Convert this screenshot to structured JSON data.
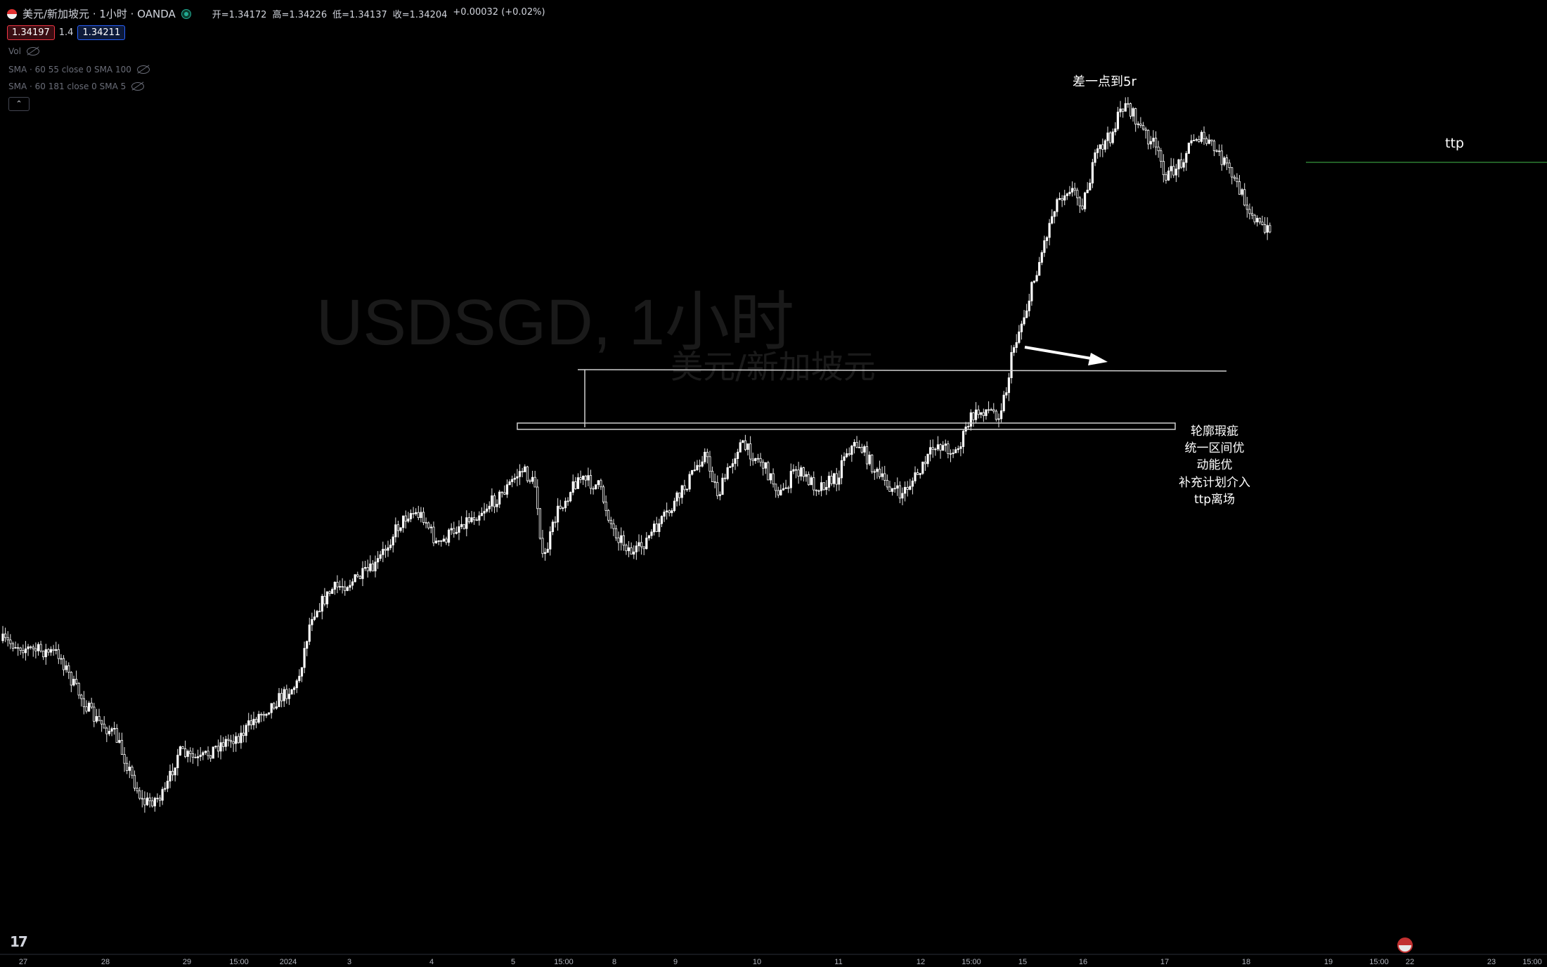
{
  "header": {
    "symbol_title": "美元/新加坡元 · 1小时 · OANDA",
    "ohlc": {
      "open": "开=1.34172",
      "high": "高=1.34226",
      "low": "低=1.34137",
      "close": "收=1.34204",
      "change": "+0.00032 (+0.02%)"
    },
    "bid": "1.34197",
    "spread": "1.4",
    "ask": "1.34211"
  },
  "indicators": [
    {
      "label": "Vol"
    },
    {
      "label": "SMA · 60 55 close 0 SMA 100"
    },
    {
      "label": "SMA · 60 181 close 0 SMA 5"
    }
  ],
  "watermark": {
    "line1": "USDSGD, 1小时",
    "line2": "美元/新加坡元"
  },
  "annotations": {
    "target_note": "差一点到5r",
    "ttp_label": "ttp",
    "reasons": [
      "轮廓瑕疵",
      "统一区间优",
      "动能优",
      "补充计划介入",
      "ttp离场"
    ]
  },
  "colors": {
    "background": "#000000",
    "candle": "#ffffff",
    "ttp_line": "#2e7d32",
    "accent_red": "#f23645",
    "accent_blue": "#2962ff"
  },
  "chart_data": {
    "type": "candlestick",
    "symbol": "USDSGD",
    "interval": "1小时",
    "x_tick_labels": [
      "27",
      "28",
      "29",
      "15:00",
      "2024",
      "3",
      "4",
      "5",
      "15:00",
      "8",
      "9",
      "10",
      "11",
      "12",
      "15:00",
      "15",
      "16",
      "17",
      "18",
      "19",
      "15:00",
      "22",
      "23",
      "15:00"
    ],
    "ylim": [
      0,
      1000
    ],
    "close_path": [
      [
        0,
        690
      ],
      [
        0.02,
        700
      ],
      [
        0.04,
        705
      ],
      [
        0.05,
        740
      ],
      [
        0.065,
        780
      ],
      [
        0.08,
        800
      ],
      [
        0.1,
        880
      ],
      [
        0.115,
        870
      ],
      [
        0.125,
        820
      ],
      [
        0.14,
        830
      ],
      [
        0.155,
        810
      ],
      [
        0.17,
        800
      ],
      [
        0.18,
        780
      ],
      [
        0.195,
        760
      ],
      [
        0.21,
        740
      ],
      [
        0.22,
        660
      ],
      [
        0.235,
        630
      ],
      [
        0.25,
        620
      ],
      [
        0.265,
        605
      ],
      [
        0.28,
        560
      ],
      [
        0.29,
        540
      ],
      [
        0.3,
        545
      ],
      [
        0.31,
        580
      ],
      [
        0.325,
        555
      ],
      [
        0.34,
        540
      ],
      [
        0.355,
        520
      ],
      [
        0.37,
        490
      ],
      [
        0.38,
        510
      ],
      [
        0.385,
        600
      ],
      [
        0.395,
        540
      ],
      [
        0.41,
        500
      ],
      [
        0.425,
        510
      ],
      [
        0.435,
        560
      ],
      [
        0.45,
        590
      ],
      [
        0.46,
        570
      ],
      [
        0.475,
        540
      ],
      [
        0.49,
        500
      ],
      [
        0.5,
        470
      ],
      [
        0.51,
        520
      ],
      [
        0.525,
        460
      ],
      [
        0.54,
        480
      ],
      [
        0.555,
        520
      ],
      [
        0.565,
        490
      ],
      [
        0.58,
        510
      ],
      [
        0.595,
        500
      ],
      [
        0.6,
        470
      ],
      [
        0.61,
        460
      ],
      [
        0.625,
        500
      ],
      [
        0.64,
        520
      ],
      [
        0.655,
        490
      ],
      [
        0.665,
        460
      ],
      [
        0.68,
        470
      ],
      [
        0.69,
        430
      ],
      [
        0.7,
        420
      ],
      [
        0.71,
        425
      ],
      [
        0.715,
        400
      ],
      [
        0.72,
        350
      ],
      [
        0.73,
        300
      ],
      [
        0.74,
        240
      ],
      [
        0.75,
        180
      ],
      [
        0.76,
        160
      ],
      [
        0.77,
        180
      ],
      [
        0.78,
        120
      ],
      [
        0.79,
        100
      ],
      [
        0.8,
        60
      ],
      [
        0.81,
        90
      ],
      [
        0.82,
        110
      ],
      [
        0.83,
        150
      ],
      [
        0.84,
        130
      ],
      [
        0.85,
        100
      ],
      [
        0.86,
        110
      ],
      [
        0.87,
        130
      ],
      [
        0.88,
        160
      ],
      [
        0.89,
        190
      ],
      [
        0.9,
        215
      ],
      [
        0.905,
        200
      ]
    ],
    "levels": [
      {
        "name": "upper-horizontal",
        "y": 384
      },
      {
        "name": "range-box-top",
        "y": 438
      },
      {
        "name": "range-box-bottom",
        "y": 445
      },
      {
        "name": "ttp",
        "y": 168
      }
    ]
  }
}
